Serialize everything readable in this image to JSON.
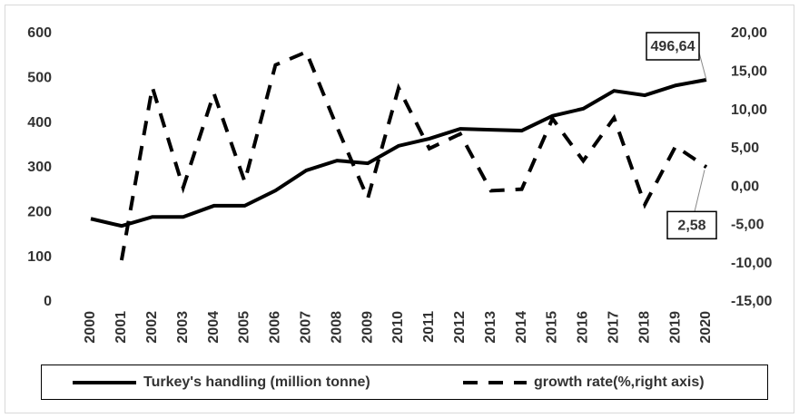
{
  "chart_data": {
    "type": "line",
    "categories": [
      "2000",
      "2001",
      "2002",
      "2003",
      "2004",
      "2005",
      "2006",
      "2007",
      "2008",
      "2009",
      "2010",
      "2011",
      "2012",
      "2013",
      "2014",
      "2015",
      "2016",
      "2017",
      "2018",
      "2019",
      "2020"
    ],
    "series": [
      {
        "name": "Turkey's handling (million tonne)",
        "color": "#000000",
        "dash": "solid",
        "values": [
          186,
          170,
          190,
          190,
          215,
          215,
          249,
          294,
          316,
          310,
          349,
          365,
          387,
          385,
          383,
          416,
          432,
          472,
          462,
          484,
          496.64
        ],
        "value_labels": [
          null,
          null,
          null,
          null,
          null,
          null,
          null,
          null,
          null,
          null,
          null,
          null,
          null,
          null,
          null,
          null,
          null,
          null,
          null,
          null,
          "496,64"
        ]
      },
      {
        "name": "growth rate(%,right axis)",
        "color": "#000000",
        "dash": "dashed",
        "axis": "y2",
        "values": [
          null,
          -9.56,
          13.0,
          -0.1,
          12.2,
          0.7,
          15.9,
          17.6,
          7.8,
          -1.5,
          12.9,
          5.0,
          6.9,
          -0.5,
          -0.3,
          8.9,
          3.4,
          9.0,
          -2.3,
          5.3,
          2.58
        ],
        "value_labels": [
          null,
          null,
          null,
          null,
          null,
          null,
          null,
          null,
          null,
          null,
          null,
          null,
          null,
          null,
          null,
          null,
          null,
          null,
          null,
          null,
          "2,58"
        ]
      }
    ],
    "ylim": [
      0,
      600
    ],
    "yticks": [
      0,
      100,
      200,
      300,
      400,
      500,
      600
    ],
    "y2lim": [
      -15,
      20
    ],
    "y2ticks": [
      {
        "value": -15,
        "label": "-15,00"
      },
      {
        "value": -10,
        "label": "-10,00"
      },
      {
        "value": -5,
        "label": "-5,00"
      },
      {
        "value": 0,
        "label": "0,00"
      },
      {
        "value": 5,
        "label": "5,00"
      },
      {
        "value": 10,
        "label": "10,00"
      },
      {
        "value": 15,
        "label": "15,00"
      },
      {
        "value": 20,
        "label": "20,00"
      }
    ],
    "legend": "bottom"
  }
}
